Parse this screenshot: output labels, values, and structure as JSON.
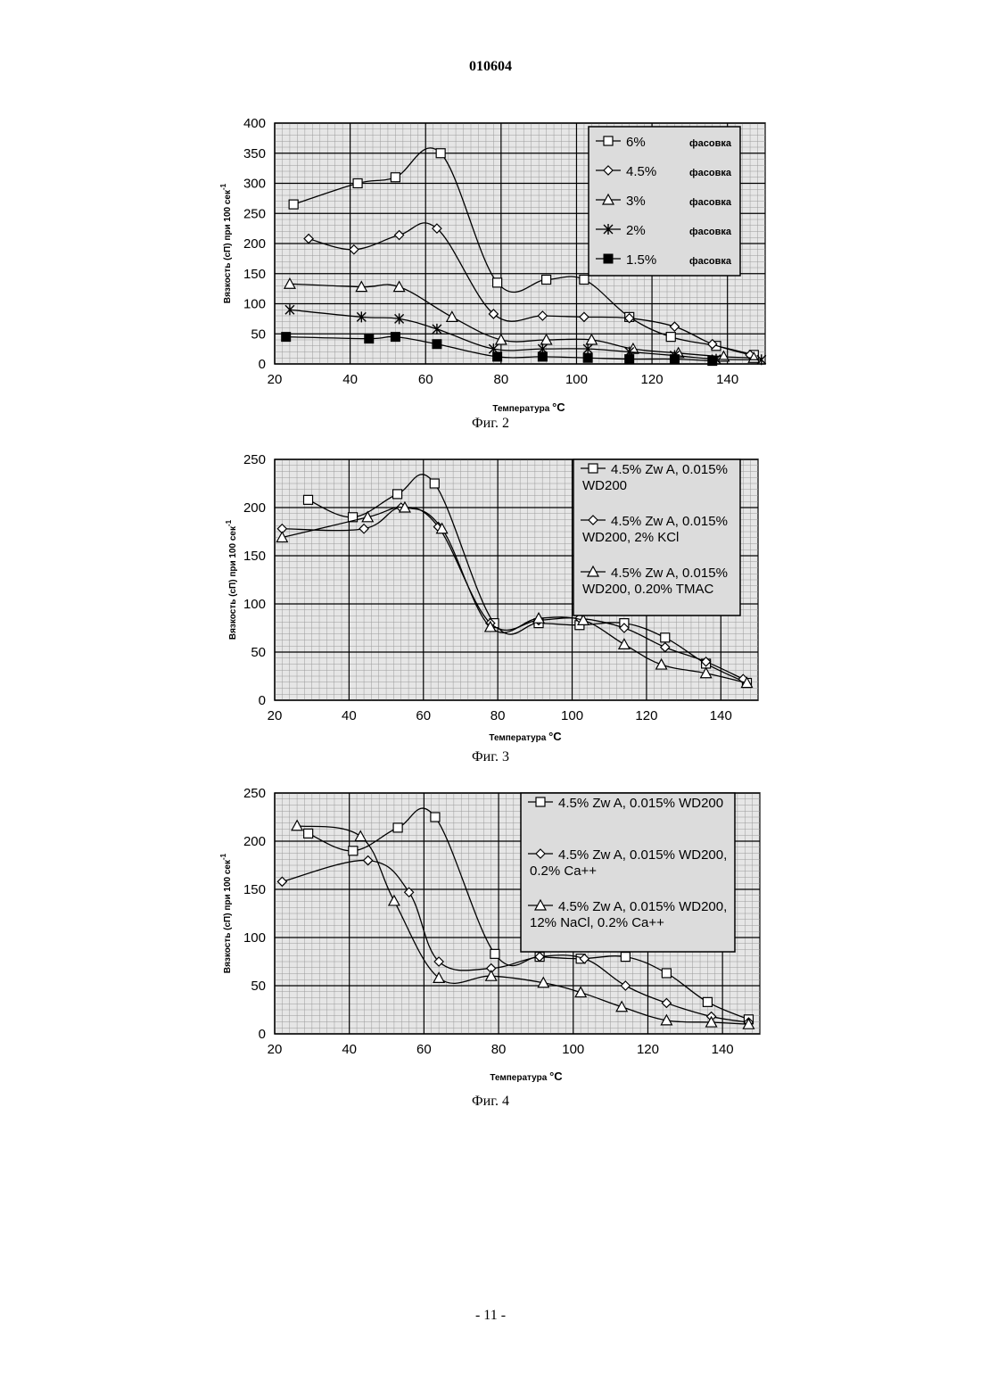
{
  "page": {
    "header_number": "010604",
    "footer_number": "- 11 -"
  },
  "chart_data": [
    {
      "type": "line",
      "caption": "Фиг. 2",
      "xlabel": "Температура",
      "xlabel_unit": "°C",
      "ylabel": "Вязкость (сП) при 100 сек",
      "ylabel_sup": "-1",
      "xlim": [
        20,
        150
      ],
      "ylim": [
        0,
        400
      ],
      "xticks": [
        20,
        40,
        60,
        80,
        100,
        120,
        140
      ],
      "yticks": [
        0,
        50,
        100,
        150,
        200,
        250,
        300,
        350,
        400
      ],
      "grid": true,
      "legend_position": "top-right",
      "series": [
        {
          "name": "6%",
          "name_suffix": "фасовка",
          "marker": "square",
          "x": [
            25,
            42,
            52,
            64,
            79,
            92,
            102,
            114,
            125,
            137,
            147
          ],
          "y": [
            265,
            300,
            310,
            350,
            135,
            140,
            140,
            78,
            45,
            30,
            15
          ]
        },
        {
          "name": "4.5%",
          "name_suffix": "фасовка",
          "marker": "diamond",
          "x": [
            29,
            41,
            53,
            63,
            78,
            91,
            102,
            114,
            126,
            136,
            146
          ],
          "y": [
            208,
            190,
            214,
            225,
            83,
            80,
            78,
            76,
            62,
            33,
            15
          ]
        },
        {
          "name": "3%",
          "name_suffix": "фасовка",
          "marker": "triangle",
          "x": [
            24,
            43,
            53,
            67,
            80,
            92,
            104,
            115,
            127,
            139,
            147
          ],
          "y": [
            133,
            128,
            128,
            78,
            40,
            40,
            40,
            25,
            18,
            12,
            10
          ]
        },
        {
          "name": "2%",
          "name_suffix": "фасовка",
          "marker": "star",
          "x": [
            24,
            43,
            53,
            63,
            78,
            91,
            103,
            114,
            126,
            137,
            149
          ],
          "y": [
            90,
            78,
            75,
            58,
            25,
            25,
            25,
            20,
            14,
            8,
            7
          ]
        },
        {
          "name": "1.5%",
          "name_suffix": "фасовка",
          "marker": "filled-square",
          "x": [
            23,
            45,
            52,
            63,
            79,
            91,
            103,
            114,
            126,
            136
          ],
          "y": [
            45,
            42,
            45,
            33,
            12,
            12,
            10,
            8,
            8,
            5
          ]
        }
      ]
    },
    {
      "type": "line",
      "caption": "Фиг. 3",
      "xlabel": "Температура",
      "xlabel_unit": "°C",
      "ylabel": "Вязкость (сП) при 100 сек",
      "ylabel_sup": "-1",
      "xlim": [
        20,
        150
      ],
      "ylim": [
        0,
        250
      ],
      "xticks": [
        20,
        40,
        60,
        80,
        100,
        120,
        140
      ],
      "yticks": [
        0,
        50,
        100,
        150,
        200,
        250
      ],
      "grid": true,
      "legend_position": "top-right",
      "series": [
        {
          "name": "4.5% Zw A, 0.015% WD200",
          "marker": "square",
          "x": [
            29,
            41,
            53,
            63,
            79,
            91,
            102,
            114,
            125,
            136,
            147
          ],
          "y": [
            208,
            190,
            214,
            225,
            80,
            80,
            78,
            80,
            65,
            38,
            18
          ]
        },
        {
          "name": "4.5% Zw A, 0.015% WD200, 2% KCl",
          "marker": "diamond",
          "x": [
            22,
            44,
            54,
            64,
            78,
            91,
            102,
            114,
            125,
            136,
            146
          ],
          "y": [
            178,
            178,
            200,
            180,
            80,
            83,
            85,
            75,
            55,
            40,
            22
          ]
        },
        {
          "name": "4.5% Zw A, 0.015% WD200, 0.20% TMAC",
          "marker": "triangle",
          "x": [
            22,
            45,
            55,
            65,
            78,
            91,
            103,
            114,
            124,
            136,
            147
          ],
          "y": [
            169,
            190,
            200,
            178,
            76,
            85,
            83,
            58,
            37,
            28,
            18
          ]
        }
      ]
    },
    {
      "type": "line",
      "caption": "Фиг. 4",
      "xlabel": "Температура",
      "xlabel_unit": "°C",
      "ylabel": "Вязкость (сП) при 100 сек",
      "ylabel_sup": "-1",
      "xlim": [
        20,
        150
      ],
      "ylim": [
        0,
        250
      ],
      "xticks": [
        20,
        40,
        60,
        80,
        100,
        120,
        140
      ],
      "yticks": [
        0,
        50,
        100,
        150,
        200,
        250
      ],
      "grid": true,
      "legend_position": "top-right",
      "series": [
        {
          "name": "4.5% Zw A, 0.015% WD200",
          "marker": "square",
          "x": [
            29,
            41,
            53,
            63,
            79,
            91,
            102,
            114,
            125,
            136,
            147
          ],
          "y": [
            208,
            190,
            214,
            225,
            83,
            80,
            78,
            80,
            63,
            33,
            15
          ]
        },
        {
          "name": "4.5% Zw A, 0.015% WD200, 0.2% Ca++",
          "marker": "diamond",
          "x": [
            22,
            45,
            56,
            64,
            78,
            91,
            103,
            114,
            125,
            137,
            147
          ],
          "y": [
            158,
            180,
            147,
            75,
            68,
            80,
            78,
            50,
            32,
            18,
            12
          ]
        },
        {
          "name": "4.5% Zw A, 0.015% WD200, 12% NaCl, 0.2% Ca++",
          "marker": "triangle",
          "x": [
            26,
            43,
            52,
            64,
            78,
            92,
            102,
            113,
            125,
            137,
            147
          ],
          "y": [
            216,
            205,
            138,
            58,
            60,
            53,
            43,
            28,
            14,
            12,
            10
          ]
        }
      ]
    }
  ]
}
